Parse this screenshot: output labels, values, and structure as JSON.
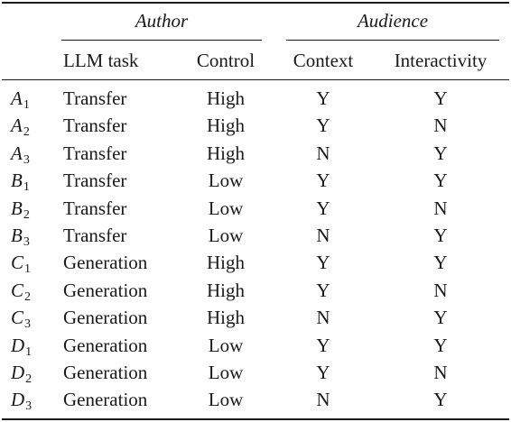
{
  "table": {
    "group_headers": {
      "author": "Author",
      "audience": "Audience"
    },
    "columns": {
      "task": "LLM task",
      "control": "Control",
      "context": "Context",
      "interactivity": "Interactivity"
    },
    "rows": [
      {
        "letter": "A",
        "sub": "1",
        "task": "Transfer",
        "control": "High",
        "context": "Y",
        "interactivity": "Y"
      },
      {
        "letter": "A",
        "sub": "2",
        "task": "Transfer",
        "control": "High",
        "context": "Y",
        "interactivity": "N"
      },
      {
        "letter": "A",
        "sub": "3",
        "task": "Transfer",
        "control": "High",
        "context": "N",
        "interactivity": "Y"
      },
      {
        "letter": "B",
        "sub": "1",
        "task": "Transfer",
        "control": "Low",
        "context": "Y",
        "interactivity": "Y"
      },
      {
        "letter": "B",
        "sub": "2",
        "task": "Transfer",
        "control": "Low",
        "context": "Y",
        "interactivity": "N"
      },
      {
        "letter": "B",
        "sub": "3",
        "task": "Transfer",
        "control": "Low",
        "context": "N",
        "interactivity": "Y"
      },
      {
        "letter": "C",
        "sub": "1",
        "task": "Generation",
        "control": "High",
        "context": "Y",
        "interactivity": "Y"
      },
      {
        "letter": "C",
        "sub": "2",
        "task": "Generation",
        "control": "High",
        "context": "Y",
        "interactivity": "N"
      },
      {
        "letter": "C",
        "sub": "3",
        "task": "Generation",
        "control": "High",
        "context": "N",
        "interactivity": "Y"
      },
      {
        "letter": "D",
        "sub": "1",
        "task": "Generation",
        "control": "Low",
        "context": "Y",
        "interactivity": "Y"
      },
      {
        "letter": "D",
        "sub": "2",
        "task": "Generation",
        "control": "Low",
        "context": "Y",
        "interactivity": "N"
      },
      {
        "letter": "D",
        "sub": "3",
        "task": "Generation",
        "control": "Low",
        "context": "N",
        "interactivity": "Y"
      }
    ]
  }
}
